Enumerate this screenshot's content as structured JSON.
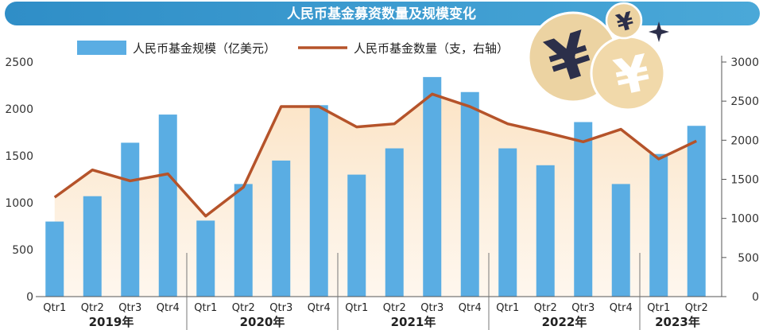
{
  "chart_data": {
    "type": "bar+line",
    "title": "人民币基金募资数量及规模变化",
    "categories": [
      "Qtr1",
      "Qtr2",
      "Qtr3",
      "Qtr4",
      "Qtr1",
      "Qtr2",
      "Qtr3",
      "Qtr4",
      "Qtr1",
      "Qtr2",
      "Qtr3",
      "Qtr4",
      "Qtr1",
      "Qtr2",
      "Qtr3",
      "Qtr4",
      "Qtr1",
      "Qtr2"
    ],
    "year_groups": [
      {
        "label": "2019年",
        "count": 4
      },
      {
        "label": "2020年",
        "count": 4
      },
      {
        "label": "2021年",
        "count": 4
      },
      {
        "label": "2022年",
        "count": 4
      },
      {
        "label": "2023年",
        "count": 2
      }
    ],
    "series": [
      {
        "name": "人民币基金规模（亿美元）",
        "type": "bar",
        "axis": "left",
        "color": "#5aade3",
        "values": [
          800,
          1070,
          1640,
          1940,
          810,
          1200,
          1450,
          2040,
          1300,
          1580,
          2340,
          2180,
          1580,
          1400,
          1860,
          1200,
          1520,
          1820
        ]
      },
      {
        "name": "人民币基金数量（支，右轴）",
        "type": "line",
        "axis": "right",
        "color": "#b5532a",
        "values": [
          1270,
          1620,
          1480,
          1570,
          1030,
          1400,
          2430,
          2430,
          2170,
          2210,
          2590,
          2430,
          2210,
          2100,
          1980,
          2140,
          1760,
          1990
        ]
      }
    ],
    "y_left": {
      "min": 0,
      "max": 2500,
      "ticks": [
        0,
        500,
        1000,
        1500,
        2000,
        2500
      ]
    },
    "y_right": {
      "min": 0,
      "max": 3000,
      "ticks": [
        0,
        500,
        1000,
        1500,
        2000,
        2500,
        3000
      ]
    },
    "colors": {
      "header_band": "#3d9bcf",
      "area_fill": "#fde9cf",
      "coin": "#e9c98c",
      "yen_symbol": "#2c2f4a"
    },
    "decoration": {
      "yen_glyph": "¥",
      "icon": "yen-coins-icon"
    }
  }
}
